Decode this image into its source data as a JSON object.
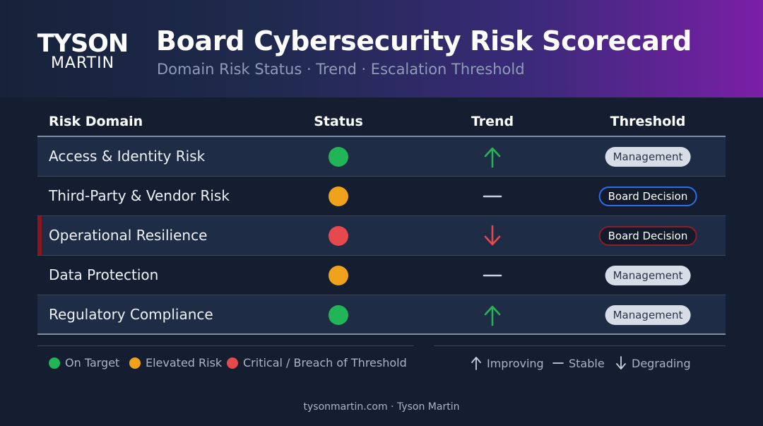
{
  "brand": {
    "logo_top": "TYSON",
    "logo_bottom": "MARTIN"
  },
  "header": {
    "title": "Board Cybersecurity Risk Scorecard",
    "subtitle": "Domain Risk Status · Trend · Escalation Threshold"
  },
  "table": {
    "columns": [
      "Risk Domain",
      "Status",
      "Trend",
      "Threshold"
    ],
    "rows": [
      {
        "domain": "Access & Identity Risk",
        "status": "on-target",
        "trend": "improving",
        "threshold": "Management"
      },
      {
        "domain": "Third-Party & Vendor Risk",
        "status": "elevated",
        "trend": "stable",
        "threshold": "Board Decision"
      },
      {
        "domain": "Operational Resilience",
        "status": "critical",
        "trend": "degrading",
        "threshold": "Board Decision"
      },
      {
        "domain": "Data Protection",
        "status": "elevated",
        "trend": "stable",
        "threshold": "Management"
      },
      {
        "domain": "Regulatory Compliance",
        "status": "on-target",
        "trend": "improving",
        "threshold": "Management"
      }
    ]
  },
  "legend": {
    "status": [
      "On Target",
      "Elevated Risk",
      "Critical / Breach of Threshold"
    ],
    "trend": [
      "Improving",
      "Stable",
      "Degrading"
    ]
  },
  "colors": {
    "on_target": "#22b557",
    "elevated": "#f0a21b",
    "critical": "#e5484d",
    "board_accent": "#2d6ee6",
    "critical_accent": "#8a1620"
  },
  "icons": {
    "improving": "arrow-up-icon",
    "stable": "dash-icon",
    "degrading": "arrow-down-icon"
  },
  "footer": {
    "text": "tysonmartin.com · Tyson Martin"
  }
}
